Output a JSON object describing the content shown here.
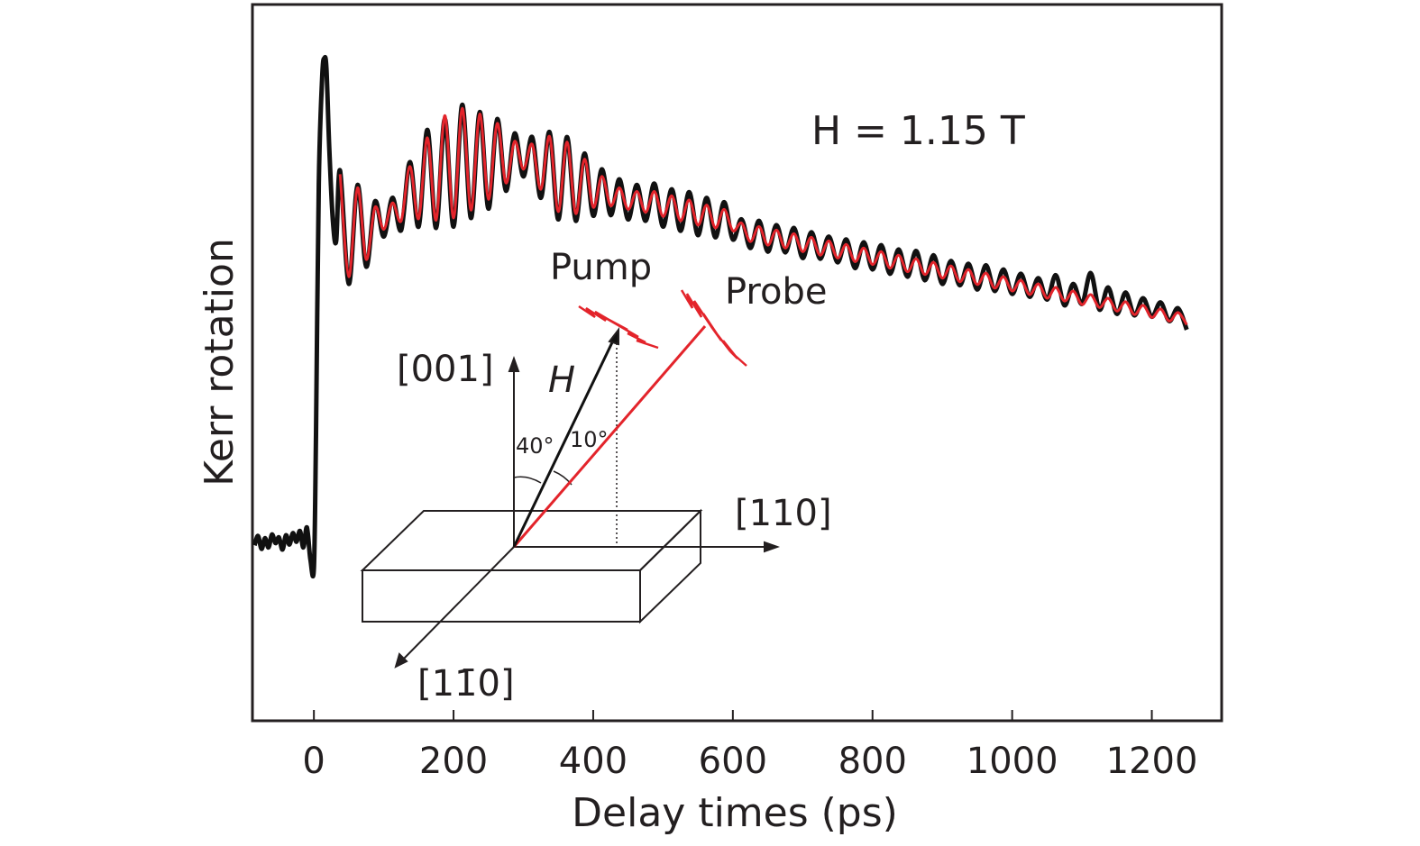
{
  "chart_data": {
    "type": "line",
    "title": "",
    "xlabel": "Delay times (ps)",
    "ylabel": "Kerr rotation",
    "xlim": [
      -88,
      1300
    ],
    "ylim": [
      0,
      100
    ],
    "y_ticks_shown": false,
    "x_ticks": [
      0,
      200,
      400,
      600,
      800,
      1000,
      1200
    ],
    "x_tick_labels": [
      "0",
      "200",
      "400",
      "600",
      "800",
      "1000",
      "1200"
    ],
    "grid": false,
    "annotation": "H = 1.15 T",
    "colors": {
      "measured": "#111111",
      "fit": "#e3242b",
      "axis": "#231f20"
    },
    "measured_early": {
      "x": [
        -85,
        -80,
        -75,
        -70,
        -65,
        -60,
        -55,
        -50,
        -45,
        -40,
        -35,
        -30,
        -25,
        -20,
        -15,
        -10,
        -5,
        0,
        3,
        7,
        12,
        15,
        18,
        22,
        27,
        32
      ],
      "y": [
        24.5,
        25.8,
        24.0,
        25.5,
        24.2,
        26.0,
        24.8,
        25.6,
        23.9,
        25.9,
        24.6,
        26.2,
        25.0,
        26.5,
        24.2,
        27.0,
        22.5,
        21.4,
        40,
        75,
        90,
        92.5,
        91,
        80,
        70,
        67
      ]
    },
    "x": [
      37.5,
      50,
      62.5,
      75,
      87.5,
      100,
      112.5,
      125,
      137.5,
      150,
      162.5,
      175,
      187.5,
      200,
      212.5,
      225,
      237.5,
      250,
      262.5,
      275,
      287.5,
      300,
      312.5,
      325,
      337.5,
      350,
      362.5,
      375,
      387.5,
      400,
      412.5,
      425,
      437.5,
      450,
      462.5,
      475,
      487.5,
      500,
      512.5,
      525,
      537.5,
      550,
      562.5,
      575,
      587.5,
      600,
      612.5,
      625,
      637.5,
      650,
      662.5,
      675,
      687.5,
      700,
      712.5,
      725,
      737.5,
      750,
      762.5,
      775,
      787.5,
      800,
      812.5,
      825,
      837.5,
      850,
      862.5,
      875,
      887.5,
      900,
      912.5,
      925,
      937.5,
      950,
      962.5,
      975,
      987.5,
      1000,
      1012.5,
      1025,
      1037.5,
      1050,
      1062.5,
      1075,
      1087.5,
      1100,
      1112.5,
      1125,
      1137.5,
      1150,
      1162.5,
      1175,
      1187.5,
      1200,
      1212.5,
      1225,
      1237.5,
      1250
    ],
    "series": [
      {
        "role": "measured",
        "values": [
          76.8,
          61.0,
          74.8,
          63.4,
          72.5,
          67.6,
          73.0,
          68.5,
          78.0,
          69.0,
          82.5,
          68.8,
          84.0,
          69.0,
          86.0,
          70.2,
          85.0,
          71.5,
          84.0,
          74.0,
          82.0,
          76.0,
          81.5,
          73.0,
          82.2,
          70.0,
          81.5,
          69.8,
          79.2,
          70.5,
          77.0,
          70.6,
          75.6,
          70.0,
          74.8,
          69.8,
          75.0,
          69.0,
          74.2,
          68.4,
          73.8,
          67.8,
          73.0,
          67.5,
          72.4,
          67.2,
          70.0,
          66.0,
          69.8,
          65.5,
          69.2,
          65.4,
          68.8,
          64.6,
          68.2,
          64.5,
          67.6,
          64.0,
          67.2,
          63.2,
          66.8,
          63.0,
          66.4,
          62.4,
          65.8,
          62.0,
          65.6,
          61.5,
          65.0,
          61.0,
          64.2,
          60.8,
          63.8,
          60.2,
          63.6,
          60.0,
          63.0,
          59.6,
          62.4,
          59.2,
          61.8,
          58.8,
          62.2,
          58.0,
          61.0,
          58.2,
          62.5,
          57.4,
          60.5,
          56.8,
          59.8,
          56.6,
          59.0,
          56.4,
          58.4,
          55.8,
          57.6,
          54.6
        ]
      },
      {
        "role": "fit",
        "values": [
          76.3,
          62.0,
          74.4,
          64.4,
          71.7,
          68.6,
          72.3,
          69.8,
          77.4,
          70.1,
          81.4,
          69.9,
          84.5,
          70.2,
          85.5,
          71.3,
          84.7,
          72.8,
          83.4,
          75.1,
          80.9,
          77.0,
          80.5,
          74.2,
          81.6,
          71.1,
          80.8,
          70.8,
          78.4,
          71.7,
          76.0,
          71.9,
          74.4,
          71.4,
          73.9,
          71.0,
          73.9,
          70.4,
          73.3,
          69.8,
          72.7,
          69.2,
          72.0,
          68.8,
          71.4,
          68.4,
          69.5,
          66.9,
          69.0,
          66.4,
          68.5,
          66.0,
          68.0,
          65.5,
          67.5,
          65.0,
          67.0,
          64.6,
          66.5,
          64.1,
          66.0,
          63.7,
          65.5,
          63.2,
          65.0,
          62.7,
          64.5,
          62.3,
          64.0,
          61.8,
          63.5,
          61.3,
          63.0,
          60.9,
          62.5,
          60.4,
          62.0,
          60.0,
          61.5,
          59.5,
          61.0,
          59.0,
          60.5,
          58.6,
          60.0,
          58.1,
          59.5,
          57.7,
          59.0,
          57.2,
          58.5,
          56.7,
          58.0,
          56.3,
          57.5,
          55.8,
          57.0,
          55.3
        ]
      }
    ]
  },
  "inset": {
    "axis_001": "[001]",
    "axis_110": "[110]",
    "axis_1bar10": "[11̄0]",
    "field_label": "H",
    "angle_40": "40°",
    "angle_10": "10°",
    "pump_label": "Pump",
    "probe_label": "Probe"
  }
}
